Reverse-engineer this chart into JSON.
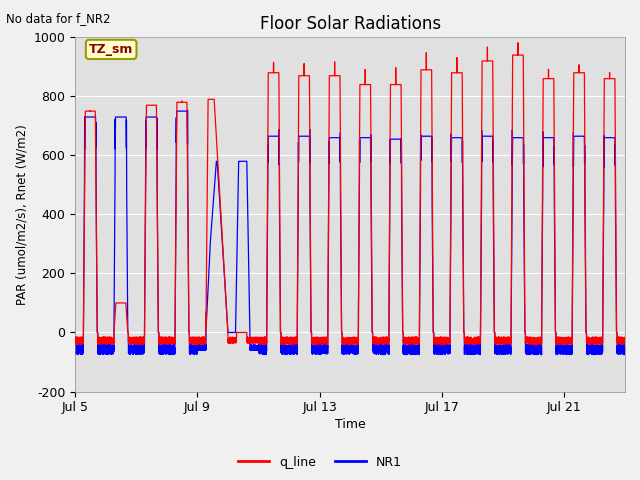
{
  "title": "Floor Solar Radiations",
  "xlabel": "Time",
  "ylabel": "PAR (umol/m2/s), Rnet (W/m2)",
  "top_left_note": "No data for f_NR2",
  "legend_label": "TZ_sm",
  "ylim": [
    -200,
    1000
  ],
  "line1_label": "q_line",
  "line1_color": "red",
  "line2_label": "NR1",
  "line2_color": "blue",
  "fig_bg_color": "#f0f0f0",
  "plot_bg_color": "#e0e0e0",
  "x_tick_positions": [
    0,
    4,
    8,
    12,
    16
  ],
  "x_tick_labels": [
    "Jul 5",
    "Jul 9",
    "Jul 13",
    "Jul 17",
    "Jul 21"
  ],
  "y_tick_positions": [
    -200,
    0,
    200,
    400,
    600,
    800,
    1000
  ],
  "total_days": 18
}
